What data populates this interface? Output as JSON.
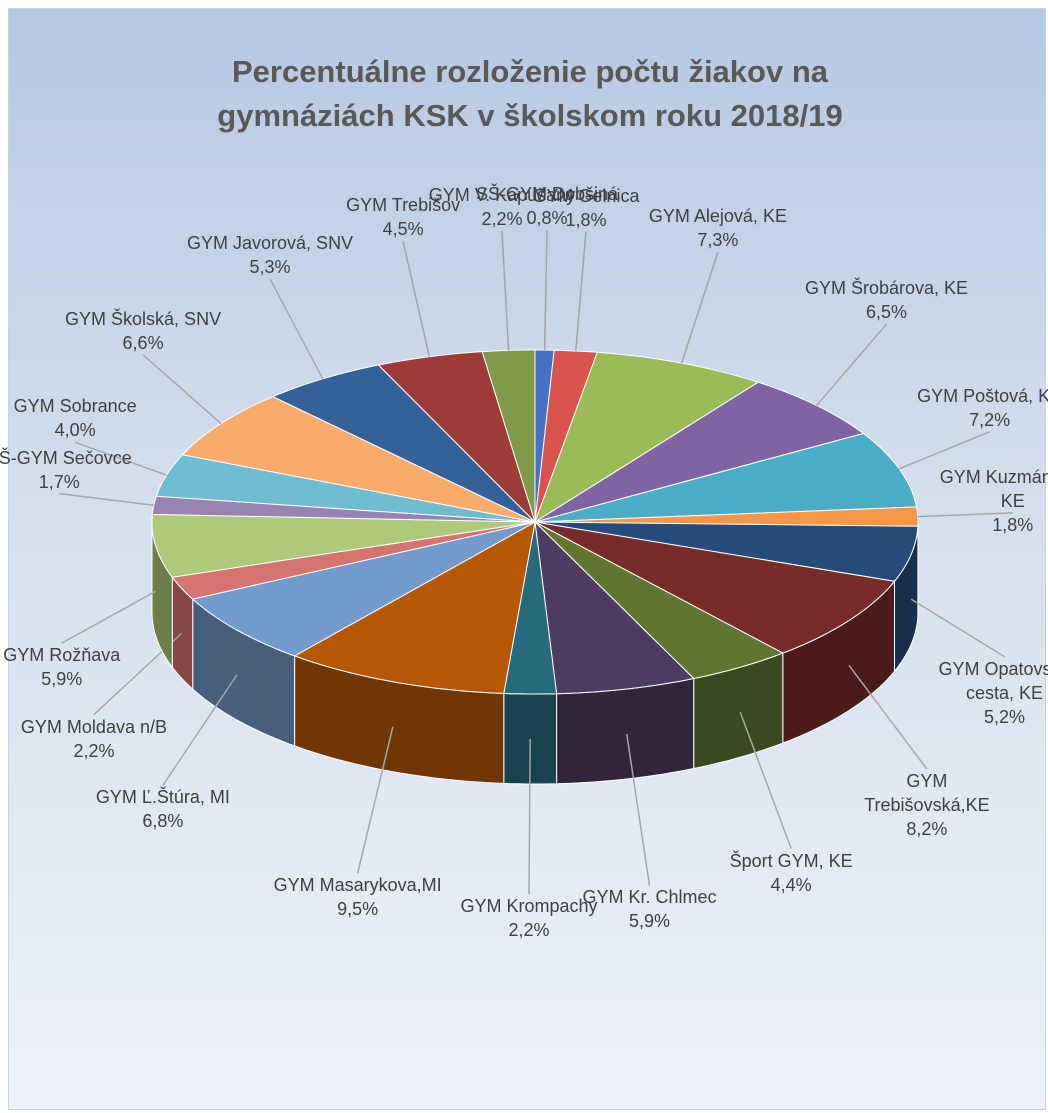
{
  "chart_data": {
    "type": "pie3d",
    "title": "Percentuálne rozloženie počtu žiakov na gymnáziách KSK v školskom roku 2018/19",
    "categories": [
      "SŠ-GYM Dobšiná",
      "GYM Gelnica",
      "GYM Alejová, KE",
      "GYM Šrobárova, KE",
      "GYM Poštová, KE",
      "GYM Kuzmányho, KE",
      "GYM Opatovská cesta, KE",
      "GYM Trebišovská,KE",
      "Šport GYM, KE",
      "GYM Kr. Chlmec",
      "GYM Krompachy",
      "GYM Masarykova,MI",
      "GYM Ľ.Štúra, MI",
      "GYM Moldava n/B",
      "GYM Rožňava",
      "SŠ-GYM Sečovce",
      "GYM Sobrance",
      "GYM Školská, SNV",
      "GYM Javorová, SNV",
      "GYM Trebišov",
      "GYM V. Kapušany"
    ],
    "values": [
      0.8,
      1.8,
      7.3,
      6.5,
      7.2,
      1.8,
      5.2,
      8.2,
      4.4,
      5.9,
      2.2,
      9.5,
      6.8,
      2.2,
      5.9,
      1.7,
      4.0,
      6.6,
      5.3,
      4.5,
      2.2
    ],
    "value_labels": [
      "0,8%",
      "1,8%",
      "7,3%",
      "6,5%",
      "7,2%",
      "1,8%",
      "5,2%",
      "8,2%",
      "4,4%",
      "5,9%",
      "2,2%",
      "9,5%",
      "6,8%",
      "2,2%",
      "5,9%",
      "1,7%",
      "4,0%",
      "6,6%",
      "5,3%",
      "4,5%",
      "2,2%"
    ],
    "colors": [
      "#4472c4",
      "#d9534f",
      "#9bbb59",
      "#8064a2",
      "#4bacc6",
      "#f79646",
      "#254b7a",
      "#772c2a",
      "#5f7530",
      "#4d3b62",
      "#276a7c",
      "#b65708",
      "#729aca",
      "#d57371",
      "#afc97a",
      "#9983b5",
      "#6fbdd1",
      "#f9ab6b",
      "#35619a",
      "#9c3b38",
      "#7f9a48"
    ]
  }
}
